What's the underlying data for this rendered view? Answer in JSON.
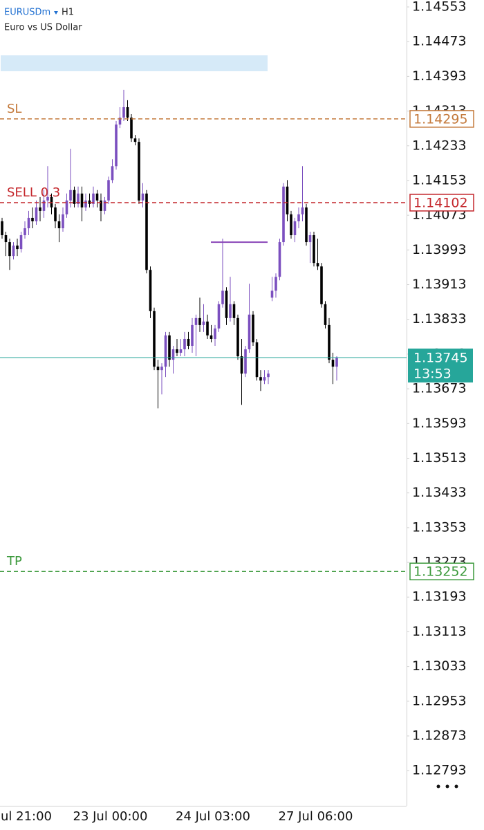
{
  "header": {
    "symbol": "EURUSDm",
    "timeframe": "H1",
    "description": "Euro vs US Dollar"
  },
  "chart_data": {
    "type": "candlestick",
    "categories": [
      "ul 21:00",
      null,
      null,
      null,
      null,
      null,
      null,
      null,
      null,
      null,
      null,
      null,
      null,
      null,
      null,
      null,
      null,
      null,
      null,
      "23 Jul 00:00",
      null,
      null,
      null,
      null,
      null,
      null,
      null,
      null,
      null,
      null,
      null,
      null,
      null,
      null,
      null,
      null,
      null,
      null,
      null,
      null,
      null,
      null,
      null,
      null,
      null,
      null,
      "24 Jul 03:00",
      null,
      null,
      null,
      null,
      null,
      null,
      null,
      null,
      null,
      null,
      null,
      null,
      null,
      null,
      null,
      null,
      null,
      null,
      null,
      null,
      null,
      null,
      null,
      null,
      null,
      null,
      "27 Jul 06:00",
      null,
      null,
      null,
      null,
      null,
      null,
      null,
      null,
      null,
      null,
      null,
      null,
      null,
      null,
      null
    ],
    "open": [
      1.14059,
      1.14027,
      1.14011,
      1.13979,
      1.14003,
      1.13995,
      1.14027,
      1.14043,
      1.14067,
      1.14059,
      1.14091,
      1.14083,
      1.14107,
      1.14115,
      1.14091,
      1.14059,
      1.14043,
      1.14075,
      1.14107,
      1.14131,
      1.14099,
      1.14123,
      1.14091,
      1.14107,
      1.14099,
      1.14123,
      1.14107,
      1.14083,
      1.14107,
      1.14154,
      1.14186,
      1.14282,
      1.14298,
      1.14322,
      1.14298,
      1.1425,
      1.14242,
      1.14107,
      1.14123,
      1.13947,
      1.13852,
      1.13724,
      1.13716,
      1.13724,
      1.13796,
      1.1374,
      1.13764,
      1.13756,
      1.13764,
      1.13788,
      1.13772,
      1.1382,
      1.13836,
      1.1382,
      1.13828,
      1.13796,
      1.13788,
      1.13812,
      1.13868,
      1.13899,
      1.13836,
      1.13868,
      1.13836,
      1.13748,
      1.13708,
      1.13764,
      1.13844,
      1.1378,
      1.137,
      1.13692,
      1.137,
      1.13883,
      1.13899,
      1.13931,
      1.14011,
      1.14139,
      1.14075,
      1.14027,
      1.14059,
      1.14075,
      1.14091,
      1.14011,
      1.14027,
      1.13963,
      1.13955,
      1.13868,
      1.1382,
      1.1374,
      1.13724
    ],
    "high": [
      1.14067,
      1.14035,
      1.14019,
      1.14011,
      1.14019,
      1.14035,
      1.14059,
      1.14083,
      1.14091,
      1.14107,
      1.14115,
      1.14131,
      1.14186,
      1.14123,
      1.14099,
      1.14075,
      1.14091,
      1.14123,
      1.14226,
      1.14139,
      1.14139,
      1.14139,
      1.14123,
      1.14123,
      1.14139,
      1.14131,
      1.14123,
      1.14115,
      1.14162,
      1.14202,
      1.1429,
      1.14322,
      1.14362,
      1.14338,
      1.14306,
      1.14258,
      1.1425,
      1.14147,
      1.14131,
      1.13955,
      1.1386,
      1.1374,
      1.13732,
      1.13804,
      1.13804,
      1.13772,
      1.13788,
      1.13788,
      1.13804,
      1.13804,
      1.13836,
      1.13844,
      1.13883,
      1.13868,
      1.13844,
      1.1382,
      1.1382,
      1.13875,
      1.14019,
      1.13907,
      1.13931,
      1.13875,
      1.13844,
      1.13788,
      1.13772,
      1.13915,
      1.13852,
      1.13788,
      1.13716,
      1.13716,
      1.13716,
      1.13931,
      1.13939,
      1.14019,
      1.14147,
      1.14154,
      1.14083,
      1.14067,
      1.14091,
      1.14186,
      1.14099,
      1.14035,
      1.14035,
      1.14019,
      1.13963,
      1.13875,
      1.13836,
      1.13756,
      1.13748
    ],
    "low": [
      1.14019,
      1.13979,
      1.13947,
      1.13971,
      1.13979,
      1.13987,
      1.14019,
      1.14027,
      1.14043,
      1.14051,
      1.14059,
      1.14067,
      1.14091,
      1.14075,
      1.14043,
      1.14011,
      1.14035,
      1.14067,
      1.14091,
      1.14091,
      1.14091,
      1.14059,
      1.14083,
      1.14091,
      1.14091,
      1.14091,
      1.14059,
      1.14075,
      1.14099,
      1.14147,
      1.14178,
      1.14274,
      1.1429,
      1.1429,
      1.14242,
      1.14234,
      1.14099,
      1.14091,
      1.13939,
      1.13836,
      1.13716,
      1.13628,
      1.1366,
      1.137,
      1.13724,
      1.13708,
      1.13748,
      1.13748,
      1.13748,
      1.13764,
      1.13756,
      1.13748,
      1.13804,
      1.13804,
      1.13788,
      1.1378,
      1.13772,
      1.13804,
      1.1386,
      1.1382,
      1.13828,
      1.1382,
      1.1374,
      1.13636,
      1.137,
      1.13756,
      1.13772,
      1.13692,
      1.13668,
      1.13684,
      1.13684,
      1.13875,
      1.13883,
      1.13923,
      1.14003,
      1.14059,
      1.14019,
      1.14011,
      1.14043,
      1.14059,
      1.14003,
      1.13963,
      1.13955,
      1.13947,
      1.1386,
      1.13812,
      1.13732,
      1.13684,
      1.13692
    ],
    "close": [
      1.14027,
      1.14011,
      1.13979,
      1.14003,
      1.13995,
      1.14027,
      1.14043,
      1.14067,
      1.14059,
      1.14091,
      1.14083,
      1.14107,
      1.14115,
      1.14091,
      1.14059,
      1.14043,
      1.14075,
      1.14107,
      1.14131,
      1.14099,
      1.14123,
      1.14091,
      1.14107,
      1.14099,
      1.14123,
      1.14107,
      1.14083,
      1.14107,
      1.14154,
      1.14186,
      1.14282,
      1.14298,
      1.14322,
      1.14298,
      1.1425,
      1.14242,
      1.14107,
      1.14123,
      1.13947,
      1.13852,
      1.13724,
      1.13716,
      1.13724,
      1.13796,
      1.1374,
      1.13764,
      1.13756,
      1.13764,
      1.13788,
      1.13772,
      1.1382,
      1.13836,
      1.1382,
      1.13828,
      1.13796,
      1.13788,
      1.13812,
      1.13868,
      1.13899,
      1.13836,
      1.13868,
      1.13836,
      1.13748,
      1.13708,
      1.13764,
      1.13844,
      1.1378,
      1.137,
      1.13692,
      1.137,
      1.13708,
      1.13899,
      1.13931,
      1.14011,
      1.14139,
      1.14075,
      1.14027,
      1.14059,
      1.14075,
      1.14091,
      1.14011,
      1.14027,
      1.13963,
      1.13955,
      1.13868,
      1.1382,
      1.1374,
      1.13724,
      1.13745
    ],
    "up_color": "#7b4fbf",
    "down_color": "#000000",
    "ylim": [
      1.12712,
      1.14569
    ],
    "yticks": [
      1.14553,
      1.14473,
      1.14393,
      1.14313,
      1.14233,
      1.14153,
      1.14073,
      1.13993,
      1.13913,
      1.13833,
      1.13753,
      1.13673,
      1.13593,
      1.13513,
      1.13433,
      1.13353,
      1.13273,
      1.13193,
      1.13113,
      1.13033,
      1.12953,
      1.12873,
      1.12793
    ],
    "levels": [
      {
        "name": "SL",
        "value": 1.14295,
        "color": "#c47a3c"
      },
      {
        "name": "SELL 0.3",
        "value": 1.14102,
        "color": "#c4272c"
      },
      {
        "name": "TP",
        "value": 1.13252,
        "color": "#3b993b"
      }
    ],
    "current": {
      "value": 1.13745,
      "time_label": "13:53",
      "color": "#26a69a"
    },
    "drawn_line": {
      "value": 1.14011,
      "color": "#8a45b8"
    }
  }
}
